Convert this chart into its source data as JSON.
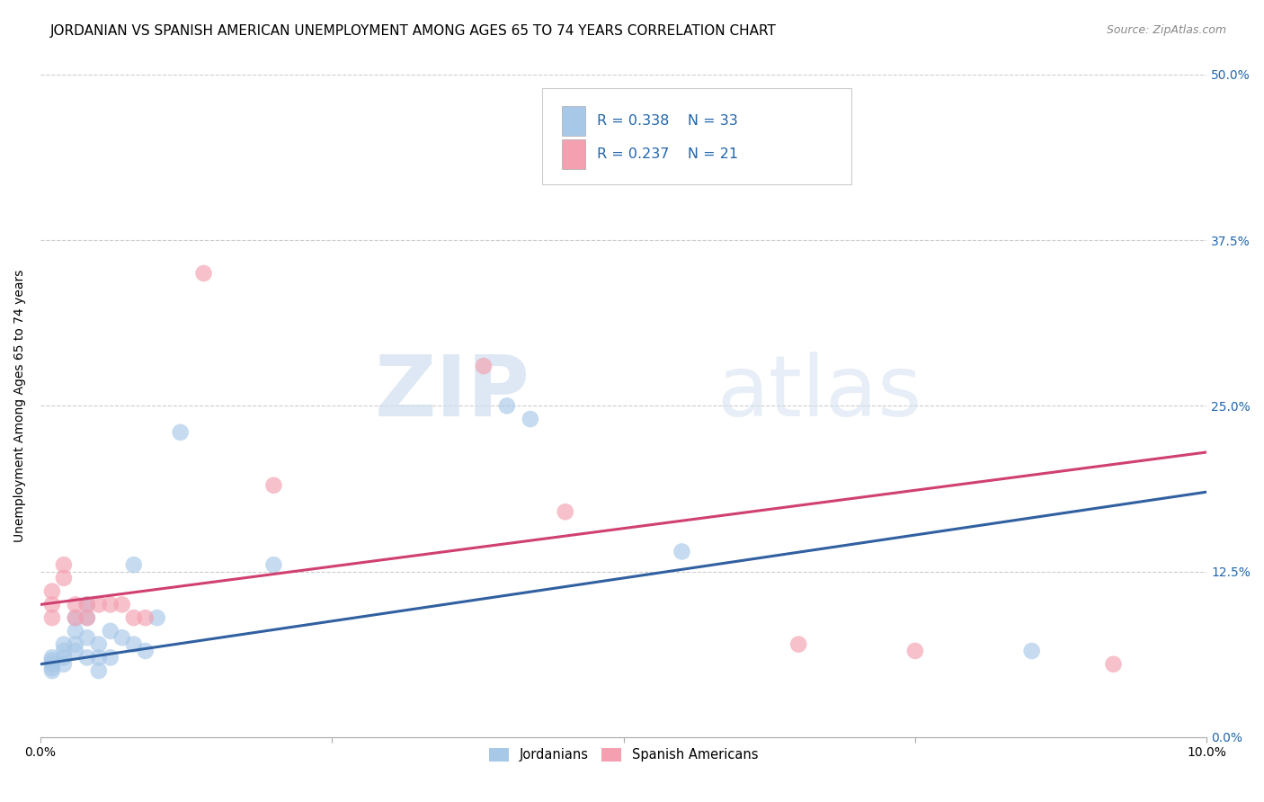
{
  "title": "JORDANIAN VS SPANISH AMERICAN UNEMPLOYMENT AMONG AGES 65 TO 74 YEARS CORRELATION CHART",
  "source": "Source: ZipAtlas.com",
  "ylabel": "Unemployment Among Ages 65 to 74 years",
  "xlim": [
    0.0,
    0.1
  ],
  "ylim": [
    0.0,
    0.5
  ],
  "xticks": [
    0.0,
    0.025,
    0.05,
    0.075,
    0.1
  ],
  "xtick_labels": [
    "0.0%",
    "",
    "",
    "",
    "10.0%"
  ],
  "ytick_labels_right": [
    "0.0%",
    "12.5%",
    "25.0%",
    "37.5%",
    "50.0%"
  ],
  "yticks": [
    0.0,
    0.125,
    0.25,
    0.375,
    0.5
  ],
  "watermark_zip": "ZIP",
  "watermark_atlas": "atlas",
  "legend_r1": "R = 0.338",
  "legend_n1": "N = 33",
  "legend_r2": "R = 0.237",
  "legend_n2": "N = 21",
  "blue_color": "#a8c8e8",
  "pink_color": "#f4a0b0",
  "blue_line_color": "#3060a0",
  "pink_line_color": "#d04070",
  "jordanians_x": [
    0.001,
    0.001,
    0.001,
    0.001,
    0.001,
    0.002,
    0.002,
    0.002,
    0.002,
    0.003,
    0.003,
    0.003,
    0.003,
    0.004,
    0.004,
    0.004,
    0.004,
    0.005,
    0.005,
    0.005,
    0.006,
    0.006,
    0.007,
    0.008,
    0.008,
    0.009,
    0.01,
    0.012,
    0.02,
    0.04,
    0.042,
    0.055,
    0.085
  ],
  "jordanians_y": [
    0.06,
    0.055,
    0.058,
    0.052,
    0.05,
    0.07,
    0.065,
    0.06,
    0.055,
    0.08,
    0.07,
    0.09,
    0.065,
    0.1,
    0.09,
    0.075,
    0.06,
    0.07,
    0.06,
    0.05,
    0.08,
    0.06,
    0.075,
    0.13,
    0.07,
    0.065,
    0.09,
    0.23,
    0.13,
    0.25,
    0.24,
    0.14,
    0.065
  ],
  "spanish_x": [
    0.001,
    0.001,
    0.001,
    0.002,
    0.002,
    0.003,
    0.003,
    0.004,
    0.004,
    0.005,
    0.006,
    0.007,
    0.008,
    0.009,
    0.014,
    0.02,
    0.038,
    0.045,
    0.065,
    0.075,
    0.092
  ],
  "spanish_y": [
    0.09,
    0.1,
    0.11,
    0.12,
    0.13,
    0.09,
    0.1,
    0.09,
    0.1,
    0.1,
    0.1,
    0.1,
    0.09,
    0.09,
    0.35,
    0.19,
    0.28,
    0.17,
    0.07,
    0.065,
    0.055
  ],
  "blue_trendline_x0": 0.0,
  "blue_trendline_y0": 0.055,
  "blue_trendline_x1": 0.1,
  "blue_trendline_y1": 0.185,
  "pink_trendline_x0": 0.0,
  "pink_trendline_y0": 0.1,
  "pink_trendline_x1": 0.1,
  "pink_trendline_y1": 0.215,
  "title_fontsize": 11,
  "axis_label_fontsize": 10,
  "tick_fontsize": 10
}
